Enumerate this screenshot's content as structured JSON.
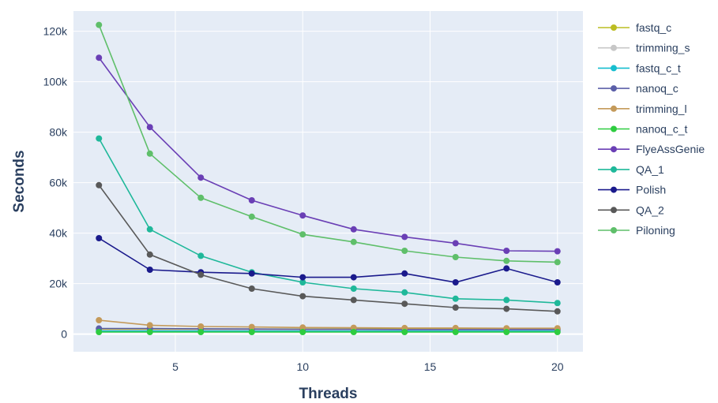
{
  "chart_data": {
    "type": "line",
    "title": "",
    "xlabel": "Threads",
    "ylabel": "Seconds",
    "xlim": [
      1,
      21
    ],
    "ylim": [
      -7000,
      128000
    ],
    "x_ticks": [
      5,
      10,
      15,
      20
    ],
    "x_tick_labels": [
      "5",
      "10",
      "15",
      "20"
    ],
    "y_ticks": [
      0,
      20000,
      40000,
      60000,
      80000,
      100000,
      120000
    ],
    "y_tick_labels": [
      "0",
      "20k",
      "40k",
      "60k",
      "80k",
      "100k",
      "120k"
    ],
    "grid": true,
    "legend_position": "right",
    "x": [
      2,
      4,
      6,
      8,
      10,
      12,
      14,
      16,
      18,
      20
    ],
    "series": [
      {
        "name": "fastq_c",
        "color": "#bcbd22",
        "values": [
          2000,
          2000,
          2000,
          2000,
          2000,
          2000,
          2000,
          2000,
          2000,
          2000
        ]
      },
      {
        "name": "trimming_s",
        "color": "#c7c7c7",
        "values": [
          1500,
          1500,
          1500,
          1500,
          1500,
          1500,
          1500,
          1500,
          1500,
          1500
        ]
      },
      {
        "name": "fastq_c_t",
        "color": "#17becf",
        "values": [
          1200,
          1200,
          1200,
          1200,
          1200,
          1200,
          1200,
          1200,
          1200,
          1200
        ]
      },
      {
        "name": "nanoq_c",
        "color": "#5b5fa8",
        "values": [
          2200,
          2200,
          2100,
          2000,
          1900,
          1900,
          1800,
          1800,
          1800,
          1800
        ]
      },
      {
        "name": "trimming_l",
        "color": "#c49a5a",
        "values": [
          5500,
          3500,
          3000,
          2800,
          2600,
          2500,
          2400,
          2400,
          2300,
          2300
        ]
      },
      {
        "name": "nanoq_c_t",
        "color": "#2ecc40",
        "values": [
          800,
          800,
          800,
          800,
          800,
          800,
          800,
          800,
          800,
          800
        ]
      },
      {
        "name": "FlyeAssGenie",
        "color": "#6a3fb5",
        "values": [
          109500,
          82000,
          62000,
          53000,
          47000,
          41500,
          38500,
          36000,
          33000,
          32800
        ]
      },
      {
        "name": "QA_1",
        "color": "#1fb89a",
        "values": [
          77500,
          41500,
          31000,
          24500,
          20500,
          18000,
          16500,
          14000,
          13500,
          12300
        ]
      },
      {
        "name": "Polish",
        "color": "#1a1a8c",
        "values": [
          38000,
          25500,
          24500,
          24000,
          22500,
          22500,
          24000,
          20500,
          26000,
          20500
        ]
      },
      {
        "name": "QA_2",
        "color": "#595959",
        "values": [
          59000,
          31500,
          23500,
          18000,
          15000,
          13500,
          12000,
          10500,
          10000,
          9000
        ]
      },
      {
        "name": "Piloning",
        "color": "#5fbf6a",
        "values": [
          122500,
          71500,
          54000,
          46500,
          39500,
          36500,
          33000,
          30500,
          29000,
          28500
        ]
      }
    ]
  },
  "colors": {
    "plot_bg": "#e5ecf6",
    "grid": "#ffffff",
    "text": "#2a3f5f"
  }
}
